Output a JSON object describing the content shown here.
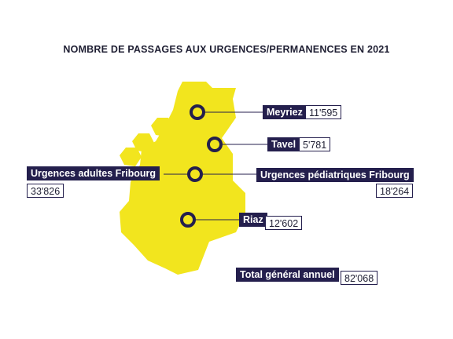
{
  "title": "NOMBRE DE PASSAGES AUX URGENCES/PERMANENCES EN 2021",
  "colors": {
    "region": "#f2e51e",
    "navy": "#241f4d"
  },
  "sites": [
    {
      "name": "Meyriez",
      "value": "11'595"
    },
    {
      "name": "Tavel",
      "value": "5'781"
    },
    {
      "name": "Urgences adultes Fribourg",
      "value": "33'826"
    },
    {
      "name": "Urgences pédiatriques Fribourg",
      "value": "18'264"
    },
    {
      "name": "Riaz",
      "value": "12'602"
    }
  ],
  "total": {
    "label": "Total général annuel",
    "value": "82'068"
  }
}
